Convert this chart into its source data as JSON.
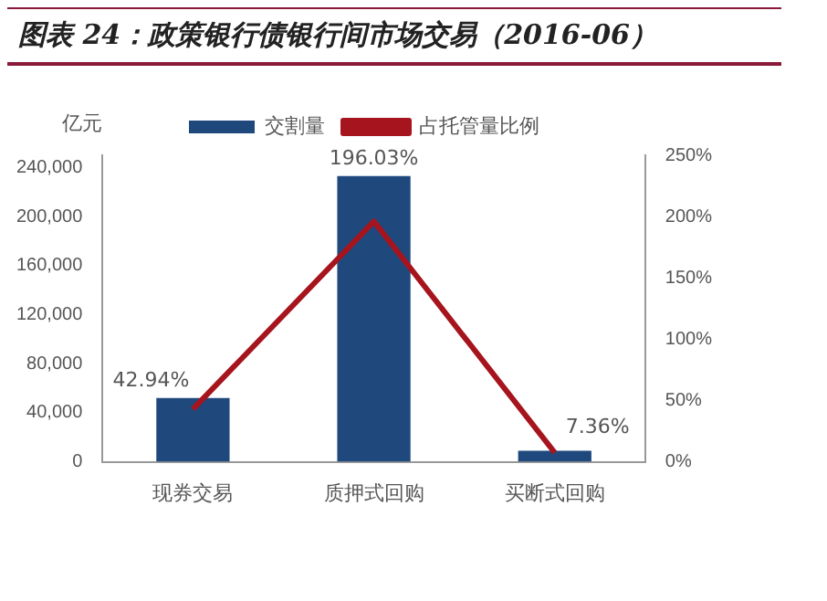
{
  "chart_data": {
    "type": "bar",
    "title": "图表 24：政策银行债银行间市场交易（2016-06）",
    "ylabel": "亿元",
    "categories": [
      "现券交易",
      "质押式回购",
      "买断式回购"
    ],
    "series": [
      {
        "name": "交割量",
        "color": "#1f497d",
        "values": [
          52000,
          233000,
          9000
        ]
      },
      {
        "name": "占托管量比例",
        "type": "line",
        "axis": "y2",
        "color": "#a6141d",
        "values": [
          42.94,
          196.03,
          7.36
        ],
        "value_labels": [
          "42.94%",
          "196.03%",
          "7.36%"
        ]
      }
    ],
    "ylim": [
      0,
      250000
    ],
    "yticks": [
      {
        "value": 0,
        "label": "0"
      },
      {
        "value": 40000,
        "label": "40,000"
      },
      {
        "value": 80000,
        "label": "80,000"
      },
      {
        "value": 120000,
        "label": "120,000"
      },
      {
        "value": 160000,
        "label": "160,000"
      },
      {
        "value": 200000,
        "label": "200,000"
      },
      {
        "value": 240000,
        "label": "240,000"
      }
    ],
    "y2lim": [
      0,
      250
    ],
    "y2ticks": [
      {
        "value": 0,
        "label": "0%"
      },
      {
        "value": 50,
        "label": "50%"
      },
      {
        "value": 100,
        "label": "100%"
      },
      {
        "value": 150,
        "label": "150%"
      },
      {
        "value": 200,
        "label": "200%"
      },
      {
        "value": 250,
        "label": "250%"
      }
    ],
    "grid": false,
    "legend": "top",
    "marker": "none"
  }
}
